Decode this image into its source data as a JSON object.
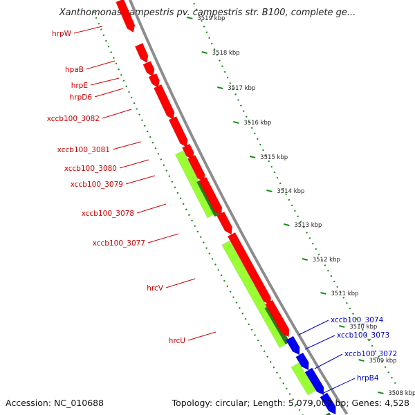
{
  "title": "Xanthomonas campestris pv. campestris str. B100, complete ge...",
  "footer": {
    "accession": "Accession: NC_010688",
    "summary": "Topology: circular; Length: 5,079,002 bp; Genes: 4,528"
  },
  "colors": {
    "forward_gene": "#ff0000",
    "reverse_gene": "#0000ee",
    "feature": "#99ff33",
    "feature_dark": "#2a7a1c",
    "backbone": "#8c8c8c",
    "dotted_guide": "#1c8c1c",
    "red_label": "#cc0000",
    "blue_label": "#0000cc"
  },
  "scale_ticks": [
    "3519 kbp",
    "3518 kbp",
    "3517 kbp",
    "3516 kbp",
    "3515 kbp",
    "3514 kbp",
    "3513 kbp",
    "3512 kbp",
    "3511 kbp",
    "3510 kbp",
    "3509 kbp",
    "3508 kbp"
  ],
  "red_labels": [
    "hrpW",
    "hpaB",
    "hrpE",
    "hrpD6",
    "xccb100_3082",
    "xccb100_3081",
    "xccb100_3080",
    "xccb100_3079",
    "xccb100_3078",
    "xccb100_3077",
    "hrcV",
    "hrcU"
  ],
  "blue_labels": [
    "xccb100_3074",
    "xccb100_3073",
    "xccb100_3072",
    "hrpB4"
  ]
}
